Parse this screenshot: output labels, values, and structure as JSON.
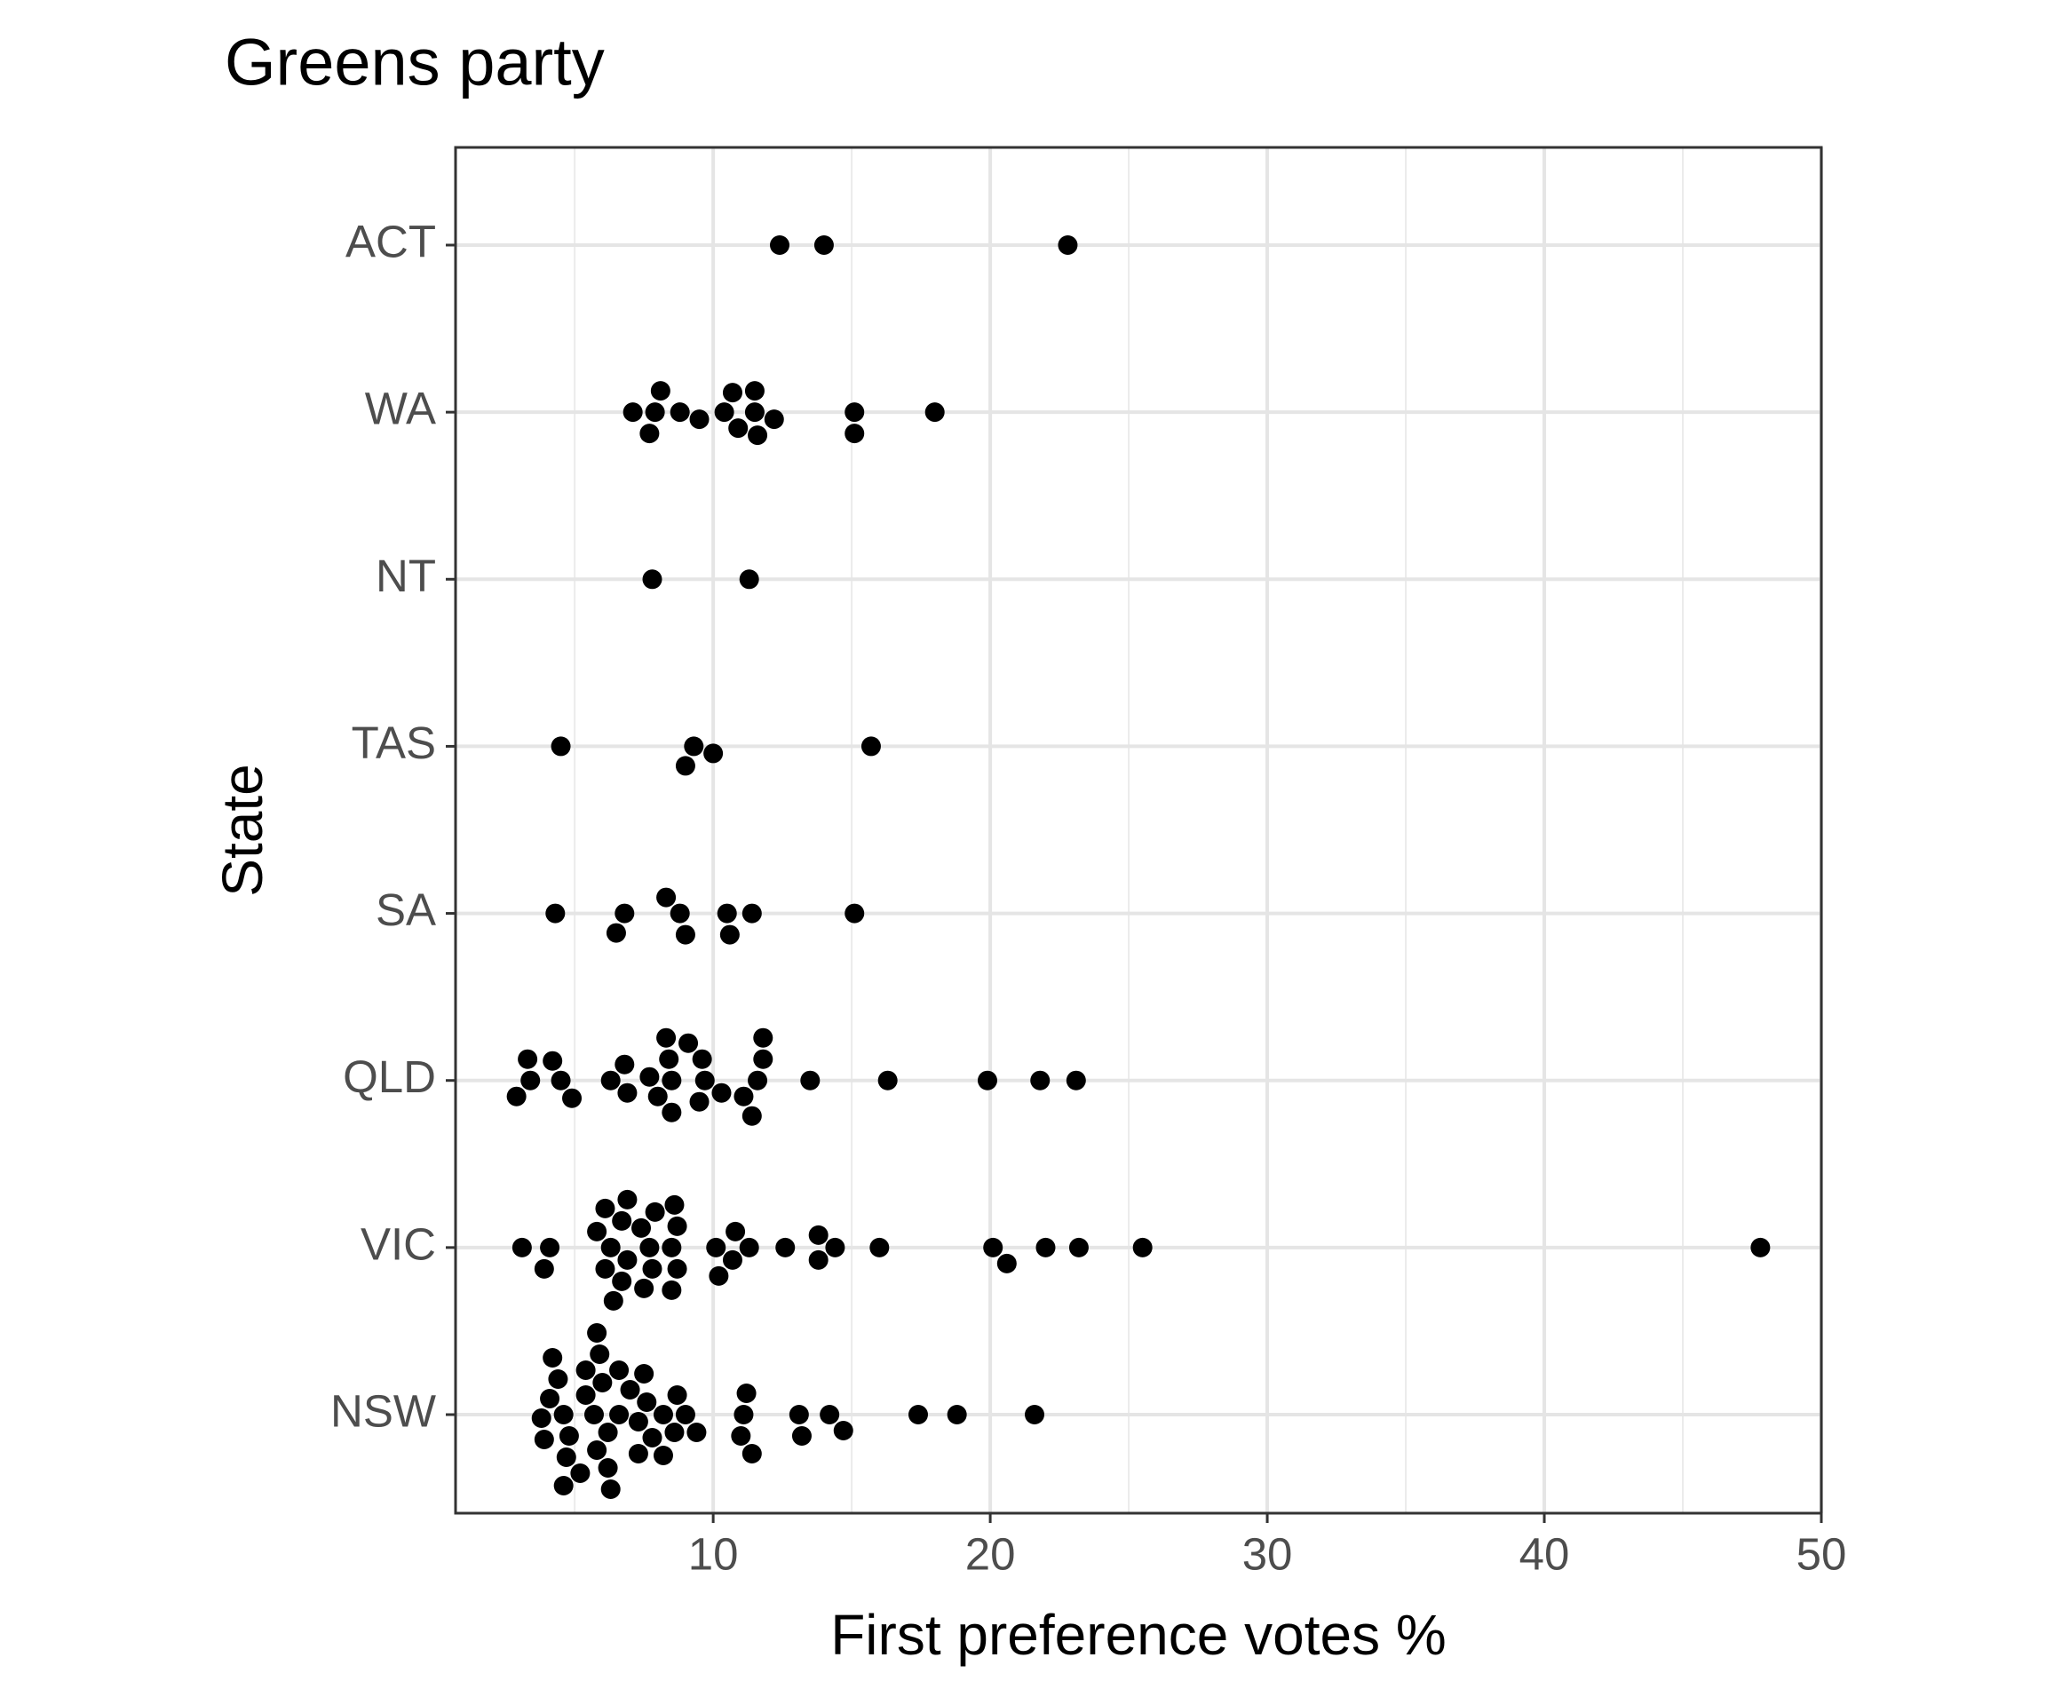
{
  "chart_data": {
    "type": "swarm",
    "title": "Greens party",
    "x_label": "First preference votes %",
    "y_label": "State",
    "categories": [
      "NSW",
      "VIC",
      "QLD",
      "SA",
      "TAS",
      "NT",
      "WA",
      "ACT"
    ],
    "values": [
      [
        5.7,
        4.6,
        6.6,
        4.8,
        7.3,
        8.2,
        6.2,
        4.1,
        5.4,
        7.6,
        11.1,
        6.0,
        9.0,
        3.8,
        7.0,
        8.6,
        11.0,
        13.1,
        14.2,
        17.4,
        18.8,
        21.6,
        5.8,
        7.8,
        4.4,
        5.4,
        6.2,
        9.4,
        7.3,
        8.7,
        11.2,
        13.2,
        14.7,
        3.9,
        4.7,
        5.9,
        7.5,
        11.4,
        4.2,
        5.2,
        6.3,
        8.2,
        6.6,
        4.6,
        5.8
      ],
      [
        7.7,
        6.3,
        6.9,
        10.1,
        8.5,
        7.4,
        11.3,
        14.4,
        8.7,
        6.1,
        6.7,
        7.8,
        13.8,
        10.7,
        4.1,
        3.1,
        3.9,
        13.8,
        20.1,
        20.6,
        22.0,
        23.2,
        25.5,
        47.8,
        12.6,
        16.0,
        10.8,
        8.7,
        6.1,
        8.5,
        10.2,
        7.5,
        6.7,
        5.8,
        6.9,
        8.6,
        6.4,
        7.9
      ],
      [
        8.5,
        8.0,
        11.6,
        6.3,
        8.4,
        9.7,
        3.4,
        11.1,
        11.8,
        4.5,
        6.9,
        9.5,
        16.3,
        2.9,
        4.9,
        8.5,
        11.4,
        13.5,
        21.8,
        23.1,
        19.9,
        3.3,
        7.7,
        9.6,
        4.2,
        6.8,
        10.3,
        11.8,
        8.3,
        9.1
      ],
      [
        10.5,
        6.8,
        8.8,
        11.4,
        4.3,
        15.1,
        6.5,
        9.0,
        8.3,
        10.6
      ],
      [
        9.3,
        15.7,
        4.5,
        9.0,
        10.0
      ],
      [
        7.8,
        11.3
      ],
      [
        7.9,
        10.4,
        11.5,
        8.8,
        10.9,
        12.2,
        15.1,
        7.1,
        9.5,
        15.1,
        18.0,
        7.7,
        11.5,
        8.1,
        11.6,
        10.7
      ],
      [
        22.8,
        12.4,
        14.0
      ]
    ],
    "color": "#000000",
    "xlim": [
      0.7,
      50
    ],
    "xticks": [
      10,
      20,
      30,
      40,
      50
    ],
    "minor_xticks": [
      5,
      15,
      25,
      35,
      45
    ],
    "grid": true
  }
}
